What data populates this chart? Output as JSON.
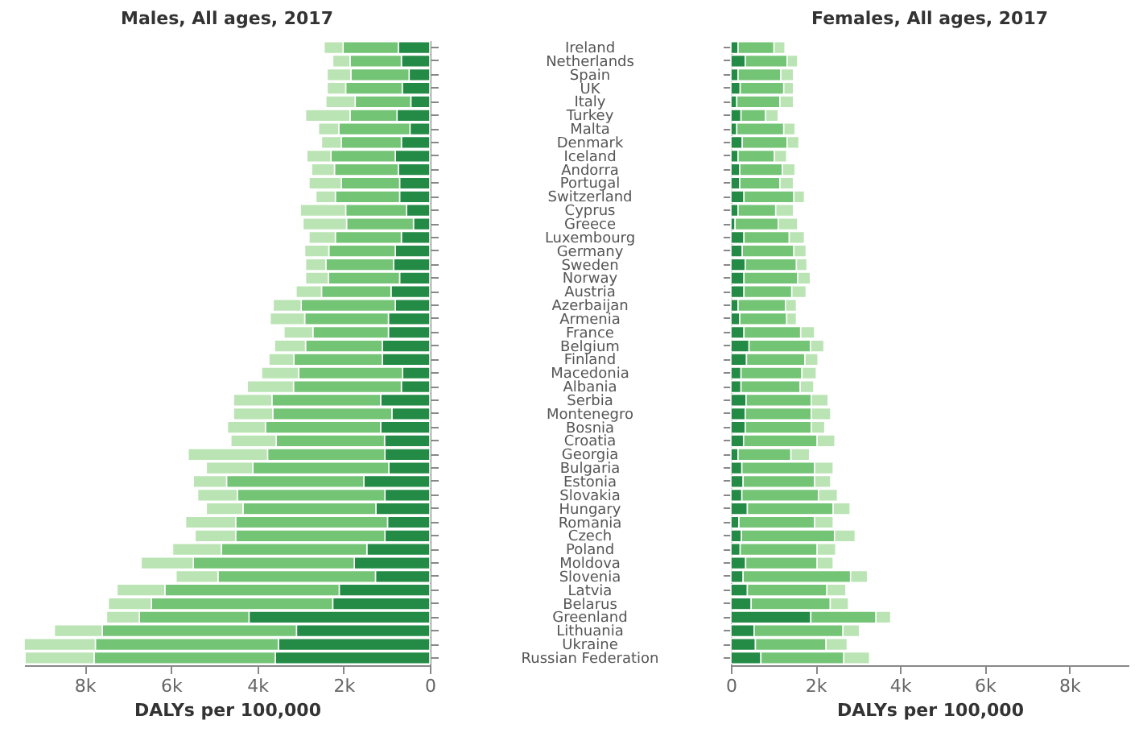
{
  "chart_data": [
    {
      "type": "bar",
      "orientation": "horizontal",
      "stacked": true,
      "title": "Males, All ages, 2017",
      "xlabel": "DALYs per 100,000",
      "categories": [
        "Ireland",
        "Netherlands",
        "Spain",
        "UK",
        "Italy",
        "Turkey",
        "Malta",
        "Denmark",
        "Iceland",
        "Andorra",
        "Portugal",
        "Switzerland",
        "Cyprus",
        "Greece",
        "Luxembourg",
        "Germany",
        "Sweden",
        "Norway",
        "Austria",
        "Azerbaijan",
        "Armenia",
        "France",
        "Belgium",
        "Finland",
        "Macedonia",
        "Albania",
        "Serbia",
        "Montenegro",
        "Bosnia",
        "Croatia",
        "Georgia",
        "Bulgaria",
        "Estonia",
        "Slovakia",
        "Hungary",
        "Romania",
        "Czech",
        "Poland",
        "Moldova",
        "Slovenia",
        "Latvia",
        "Belarus",
        "Greenland",
        "Lithuania",
        "Ukraine",
        "Russian Federation"
      ],
      "series": [
        {
          "color": "#238b45",
          "values": [
            730,
            660,
            480,
            640,
            440,
            760,
            460,
            660,
            800,
            730,
            700,
            700,
            540,
            380,
            660,
            800,
            840,
            700,
            900,
            800,
            960,
            960,
            1100,
            1100,
            630,
            660,
            1140,
            880,
            1140,
            1050,
            1040,
            950,
            1530,
            1040,
            1250,
            980,
            1040,
            1460,
            1750,
            1260,
            2100,
            2250,
            4190,
            3090,
            3510,
            3580
          ]
        },
        {
          "color": "#74c476",
          "values": [
            1280,
            1190,
            1350,
            1310,
            1290,
            1090,
            1650,
            1390,
            1490,
            1480,
            1350,
            1490,
            1410,
            1550,
            1530,
            1540,
            1570,
            1650,
            1610,
            2180,
            1940,
            1750,
            1780,
            2050,
            2410,
            2500,
            2520,
            2760,
            2670,
            2510,
            2720,
            3150,
            3180,
            3420,
            3080,
            3520,
            3460,
            3370,
            3730,
            3650,
            4040,
            4200,
            2540,
            4500,
            4240,
            4200
          ]
        },
        {
          "color": "#bae4b3",
          "values": [
            440,
            400,
            550,
            430,
            680,
            1030,
            470,
            460,
            560,
            530,
            750,
            450,
            1050,
            1010,
            610,
            560,
            470,
            530,
            590,
            650,
            800,
            670,
            720,
            580,
            860,
            1070,
            890,
            910,
            880,
            1050,
            1840,
            1080,
            770,
            920,
            850,
            1160,
            940,
            1130,
            1210,
            970,
            1110,
            1000,
            760,
            1110,
            1650,
            1600
          ]
        }
      ],
      "xlim": [
        9400,
        0
      ],
      "xticks": [
        {
          "value": 8000,
          "label": "8k"
        },
        {
          "value": 6000,
          "label": "6k"
        },
        {
          "value": 4000,
          "label": "4k"
        },
        {
          "value": 2000,
          "label": "2k"
        },
        0
      ]
    },
    {
      "type": "bar",
      "orientation": "horizontal",
      "stacked": true,
      "title": "Females, All ages, 2017",
      "xlabel": "DALYs per 100,000",
      "categories": [
        null,
        null,
        null,
        null,
        null,
        null,
        null,
        null,
        null,
        null,
        null,
        null,
        null,
        null,
        null,
        null,
        null,
        null,
        null,
        null,
        null,
        null,
        null,
        null,
        null,
        null,
        null,
        null,
        null,
        null,
        null,
        null,
        null,
        null,
        null,
        null,
        null,
        null,
        null,
        null,
        null,
        null,
        null,
        null,
        null,
        null
      ],
      "series": [
        {
          "color": "#238b45",
          "values": [
            170,
            340,
            170,
            220,
            140,
            240,
            140,
            270,
            170,
            210,
            210,
            310,
            170,
            100,
            310,
            270,
            340,
            310,
            310,
            170,
            210,
            310,
            430,
            370,
            240,
            240,
            360,
            340,
            340,
            300,
            170,
            260,
            290,
            260,
            390,
            190,
            250,
            220,
            350,
            290,
            390,
            480,
            1890,
            550,
            580,
            710
          ]
        },
        {
          "color": "#74c476",
          "values": [
            850,
            990,
            1010,
            1030,
            1020,
            580,
            1110,
            1060,
            860,
            1010,
            950,
            1180,
            890,
            1020,
            1070,
            1220,
            1210,
            1270,
            1130,
            1120,
            1110,
            1340,
            1450,
            1380,
            1440,
            1400,
            1540,
            1560,
            1560,
            1740,
            1250,
            1720,
            1690,
            1810,
            2030,
            1790,
            2200,
            1820,
            1690,
            2540,
            1880,
            1870,
            1540,
            2100,
            1670,
            1960
          ]
        },
        {
          "color": "#bae4b3",
          "values": [
            260,
            250,
            300,
            230,
            320,
            300,
            270,
            280,
            290,
            300,
            320,
            250,
            420,
            460,
            360,
            290,
            250,
            300,
            340,
            260,
            230,
            330,
            320,
            310,
            340,
            320,
            400,
            460,
            320,
            420,
            440,
            440,
            380,
            450,
            400,
            440,
            490,
            440,
            380,
            400,
            450,
            430,
            350,
            390,
            500,
            610
          ]
        }
      ],
      "xlim": [
        0,
        9400
      ],
      "xticks": [
        0,
        {
          "value": 2000,
          "label": "2k"
        },
        {
          "value": 4000,
          "label": "4k"
        },
        {
          "value": 6000,
          "label": "6k"
        },
        {
          "value": 8000,
          "label": "8k"
        }
      ],
      "tick_labels": "x"
    }
  ]
}
